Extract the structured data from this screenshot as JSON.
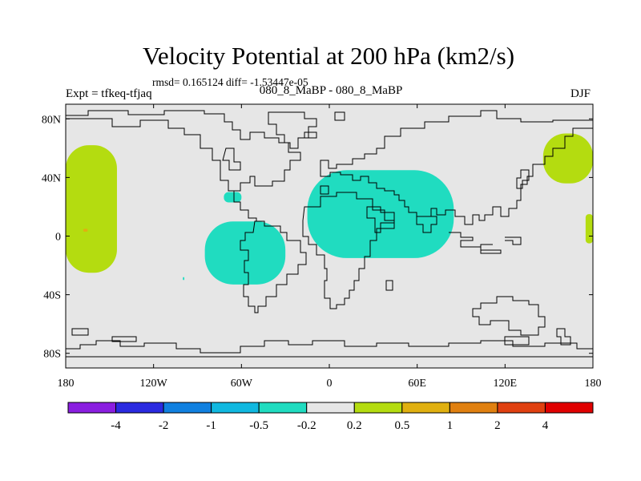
{
  "title": "Velocity Potential at 200 hPa (km2/s)",
  "stats_line": "rmsd= 0.165124 diff= -1.53447e-05",
  "left_label": "Expt = tfkeq-tfjaq",
  "center_label": "080_8_MaBP - 080_8_MaBP",
  "right_label": "DJF",
  "chart_data": {
    "type": "heatmap",
    "title": "Velocity Potential at 200 hPa (km2/s)",
    "x_axis": {
      "range": [
        -180,
        180
      ],
      "ticks": [
        -180,
        -120,
        -60,
        0,
        60,
        120,
        180
      ],
      "tick_labels": [
        "180",
        "120W",
        "60W",
        "0",
        "60E",
        "120E",
        "180"
      ]
    },
    "y_axis": {
      "range": [
        -90,
        90
      ],
      "ticks": [
        80,
        40,
        0,
        -40,
        -80
      ],
      "tick_labels": [
        "80N",
        "40N",
        "0",
        "40S",
        "80S"
      ]
    },
    "colorbar": {
      "boundaries": [
        "-4",
        "-2",
        "-1",
        "-0.5",
        "-0.2",
        "0.2",
        "0.5",
        "1",
        "2",
        "4"
      ],
      "colors": [
        "#8a1ee0",
        "#2a2ae0",
        "#1080e0",
        "#10b8e0",
        "#20dcc0",
        "#e6e6e6",
        "#b4dc10",
        "#e0b010",
        "#e08010",
        "#e04010",
        "#e00000"
      ]
    },
    "regions": [
      {
        "level": "0.2 to 0.5",
        "color": "#b4dc10",
        "label": "Central Pacific (North and South)",
        "lon": [
          -180,
          -145
        ],
        "lat": [
          -25,
          62
        ]
      },
      {
        "level": "0.5 to 1",
        "color": "#e0b010",
        "label": "small center, central Pacific",
        "lon": [
          -168,
          -165
        ],
        "lat": [
          3,
          5
        ]
      },
      {
        "level": "0.2 to 0.5",
        "color": "#b4dc10",
        "label": "Western Pacific (north)",
        "lon": [
          146,
          180
        ],
        "lat": [
          36,
          70
        ]
      },
      {
        "level": "0.2 to 0.5",
        "color": "#b4dc10",
        "label": "Western Pacific (equator edge)",
        "lon": [
          175,
          180
        ],
        "lat": [
          -5,
          15
        ]
      },
      {
        "level": "-0.5 to -0.2",
        "color": "#20dcc0",
        "label": "South America / tropical Atlantic",
        "lon": [
          -85,
          -30
        ],
        "lat": [
          -33,
          10
        ]
      },
      {
        "level": "-0.5 to -0.2",
        "color": "#20dcc0",
        "label": "Gulf of Mexico",
        "lon": [
          -72,
          -60
        ],
        "lat": [
          23,
          30
        ]
      },
      {
        "level": "-0.5 to -0.2",
        "color": "#20dcc0",
        "label": "Africa to Central Asia",
        "lon": [
          -15,
          85
        ],
        "lat": [
          -15,
          45
        ]
      },
      {
        "level": "-0.5 to -0.2",
        "color": "#20dcc0",
        "label": "small spot, southeast Pacific",
        "lon": [
          -100,
          -99
        ],
        "lat": [
          -30,
          -28
        ]
      }
    ]
  }
}
